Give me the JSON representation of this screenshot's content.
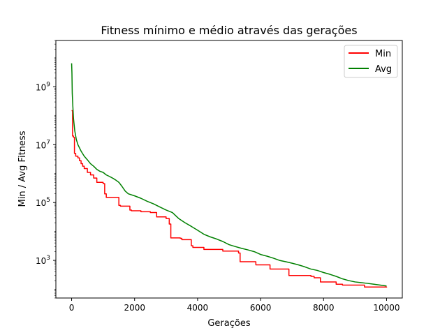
{
  "chart_data": {
    "type": "line",
    "title": "Fitness mínimo e médio através das gerações",
    "xlabel": "Gerações",
    "ylabel": "Min / Avg Fitness",
    "yscale": "log",
    "xlim": [
      -500,
      10500
    ],
    "ylim": [
      50,
      40000000000
    ],
    "grid": false,
    "legend": "top-right",
    "x_ticks": [
      0,
      2000,
      4000,
      6000,
      8000,
      10000
    ],
    "x_tick_labels": [
      "0",
      "2000",
      "4000",
      "6000",
      "8000",
      "10000"
    ],
    "y_ticks": [
      1000,
      100000,
      10000000,
      1000000000
    ],
    "y_tick_labels": [
      {
        "base": "10",
        "exp": "3"
      },
      {
        "base": "10",
        "exp": "5"
      },
      {
        "base": "10",
        "exp": "7"
      },
      {
        "base": "10",
        "exp": "9"
      }
    ],
    "series": [
      {
        "name": "Min",
        "color": "#ff0000",
        "step": true,
        "x": [
          0,
          30,
          60,
          90,
          130,
          200,
          250,
          300,
          350,
          400,
          500,
          600,
          700,
          800,
          1000,
          1050,
          1100,
          1500,
          1550,
          1850,
          1900,
          2200,
          2500,
          2700,
          3000,
          3100,
          3150,
          3450,
          3500,
          3800,
          3850,
          4200,
          4800,
          5300,
          5350,
          5850,
          6300,
          6900,
          7600,
          7700,
          7900,
          8400,
          8600,
          9300,
          10000
        ],
        "y": [
          150000000,
          20000000,
          18000000,
          5000000,
          4000000,
          3500000,
          2800000,
          2200000,
          1800000,
          1500000,
          1100000,
          900000,
          700000,
          500000,
          450000,
          200000,
          150000,
          80000,
          75000,
          55000,
          52000,
          48000,
          45000,
          32000,
          28000,
          18000,
          6000,
          5800,
          5200,
          3200,
          2800,
          2400,
          2100,
          1800,
          900,
          700,
          500,
          300,
          280,
          250,
          180,
          150,
          140,
          120,
          115
        ]
      },
      {
        "name": "Avg",
        "color": "#008000",
        "step": false,
        "x": [
          0,
          10,
          20,
          40,
          60,
          100,
          150,
          200,
          300,
          400,
          500,
          600,
          700,
          800,
          900,
          1000,
          1100,
          1200,
          1300,
          1400,
          1500,
          1600,
          1700,
          1800,
          2000,
          2200,
          2400,
          2600,
          2800,
          3000,
          3200,
          3400,
          3600,
          3800,
          4000,
          4200,
          4400,
          4600,
          4800,
          5000,
          5200,
          5400,
          5600,
          5800,
          6000,
          6200,
          6400,
          6600,
          6800,
          7000,
          7200,
          7400,
          7600,
          7800,
          8000,
          8200,
          8400,
          8600,
          8800,
          9000,
          9200,
          9400,
          9600,
          9800,
          10000
        ],
        "y": [
          6500000000,
          3000000000,
          600000000,
          200000000,
          80000000,
          30000000,
          15000000,
          10000000,
          6000000,
          4000000,
          3000000,
          2200000,
          1800000,
          1400000,
          1200000,
          1100000,
          900000,
          800000,
          700000,
          600000,
          500000,
          360000,
          250000,
          200000,
          170000,
          140000,
          110000,
          90000,
          70000,
          55000,
          45000,
          28000,
          20000,
          15000,
          11000,
          8000,
          6500,
          5500,
          4500,
          3500,
          3000,
          2600,
          2300,
          2000,
          1600,
          1400,
          1200,
          1000,
          900,
          800,
          700,
          600,
          500,
          450,
          380,
          330,
          280,
          230,
          200,
          180,
          170,
          160,
          150,
          140,
          130
        ]
      }
    ]
  }
}
